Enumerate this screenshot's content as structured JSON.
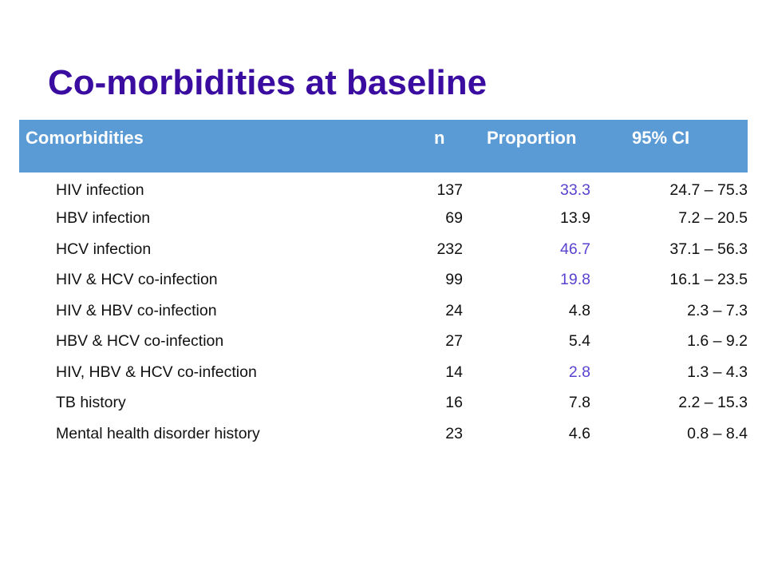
{
  "title": "Co-morbidities at baseline",
  "colors": {
    "title": "#3a0ca0",
    "header_bg": "#5b9bd5",
    "highlight": "#5a42d0"
  },
  "table": {
    "headers": [
      "Comorbidities",
      "n",
      "Proportion",
      "95% CI"
    ],
    "rows": [
      {
        "name": "HIV infection",
        "n": "137",
        "proportion": "33.3",
        "ci": "24.7 – 75.3",
        "highlight": true
      },
      {
        "name": "HBV infection",
        "n": "69",
        "proportion": "13.9",
        "ci": "7.2 – 20.5",
        "highlight": false
      },
      {
        "name": "HCV infection",
        "n": "232",
        "proportion": "46.7",
        "ci": "37.1 – 56.3",
        "highlight": true
      },
      {
        "name": "HIV & HCV co-infection",
        "n": "99",
        "proportion": "19.8",
        "ci": "16.1 – 23.5",
        "highlight": true
      },
      {
        "name": "HIV & HBV co-infection",
        "n": "24",
        "proportion": "4.8",
        "ci": "2.3 – 7.3",
        "highlight": false
      },
      {
        "name": "HBV & HCV co-infection",
        "n": "27",
        "proportion": "5.4",
        "ci": "1.6 – 9.2",
        "highlight": false
      },
      {
        "name": "HIV, HBV & HCV co-infection",
        "n": "14",
        "proportion": "2.8",
        "ci": "1.3 – 4.3",
        "highlight": true
      },
      {
        "name": "TB history",
        "n": "16",
        "proportion": "7.8",
        "ci": "2.2 – 15.3",
        "highlight": false
      },
      {
        "name": "Mental health disorder history",
        "n": "23",
        "proportion": "4.6",
        "ci": "0.8 – 8.4",
        "highlight": false
      }
    ]
  }
}
